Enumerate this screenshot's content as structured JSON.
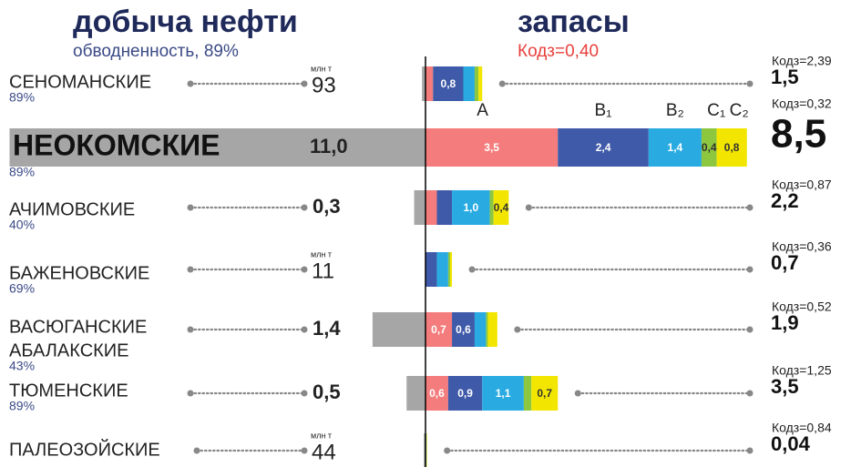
{
  "chart_data": {
    "type": "bar",
    "title": "добыча нефти",
    "subtitle": "обводненность, 89%",
    "title_right": "запасы",
    "subtitle_right": "Кодз=0,40",
    "production_color": "#a6a6a6",
    "rows": [
      {
        "name": [
          "СЕНОМАНСКИЕ"
        ],
        "watercut": "89%",
        "production": 0.093,
        "production_label": "93",
        "unit": "млн т",
        "kodz": "Кодз=2,39",
        "total": 1.5,
        "total_label": "1,5"
      },
      {
        "name": [
          "НЕОКОМСКИЕ"
        ],
        "watercut": "89%",
        "production": 11.0,
        "production_label": "11,0",
        "kodz": "Кодз=0,32",
        "total": 8.5,
        "total_label": "8,5"
      },
      {
        "name": [
          "АЧИМОВСКИЕ"
        ],
        "watercut": "40%",
        "production": 0.3,
        "production_label": "0,3",
        "kodz": "Кодз=0,87",
        "total": 2.2,
        "total_label": "2,2"
      },
      {
        "name": [
          "БАЖЕНОВСКИЕ"
        ],
        "watercut": "69%",
        "production": 0.011,
        "production_label": "11",
        "unit": "млн т",
        "kodz": "Кодз=0,36",
        "total": 0.7,
        "total_label": "0,7"
      },
      {
        "name": [
          "ВАСЮГАНСКИЕ",
          "АБАЛАКСКИЕ"
        ],
        "watercut": "43%",
        "production": 1.4,
        "production_label": "1,4",
        "kodz": "Кодз=0,52",
        "total": 1.9,
        "total_label": "1,9"
      },
      {
        "name": [
          "ТЮМЕНСКИЕ"
        ],
        "watercut": "89%",
        "production": 0.5,
        "production_label": "0,5",
        "kodz": "Кодз=1,25",
        "total": 3.5,
        "total_label": "3,5"
      },
      {
        "name": [
          "ПАЛЕОЗОЙСКИЕ"
        ],
        "production": 0.044,
        "production_label": "44",
        "unit": "млн т",
        "kodz": "Кодз=0,84",
        "total": 0.04,
        "total_label": "0,04"
      }
    ],
    "series": [
      {
        "name": "A",
        "color": "#f47c7c",
        "values": [
          0.2,
          3.5,
          0.3,
          0,
          0.7,
          0.6,
          0
        ],
        "value_labels": [
          null,
          "3,5",
          null,
          null,
          "0,7",
          "0,6",
          null
        ]
      },
      {
        "name": "B₁",
        "color": "#3f5aa8",
        "values": [
          0.8,
          2.4,
          0.4,
          0.3,
          0.6,
          0.9,
          0.01
        ],
        "value_labels": [
          "0,8",
          "2,4",
          null,
          null,
          "0,6",
          "0,9",
          null
        ]
      },
      {
        "name": "B₂",
        "color": "#29abe2",
        "values": [
          0.3,
          1.4,
          1.0,
          0.3,
          0.3,
          1.1,
          0.01
        ],
        "value_labels": [
          null,
          "1,4",
          "1,0",
          null,
          null,
          "1,1",
          null
        ]
      },
      {
        "name": "C₁",
        "color": "#8dc63f",
        "values": [
          0.1,
          0.4,
          0.1,
          0.05,
          0.05,
          0.2,
          0.01
        ],
        "value_labels": [
          null,
          "0,4",
          null,
          null,
          null,
          null,
          null
        ]
      },
      {
        "name": "C₂",
        "color": "#f2e600",
        "values": [
          0.1,
          0.8,
          0.4,
          0.05,
          0.25,
          0.7,
          0.01
        ],
        "value_labels": [
          null,
          "0,8",
          "0,4",
          null,
          null,
          "0,7",
          null
        ]
      }
    ]
  }
}
